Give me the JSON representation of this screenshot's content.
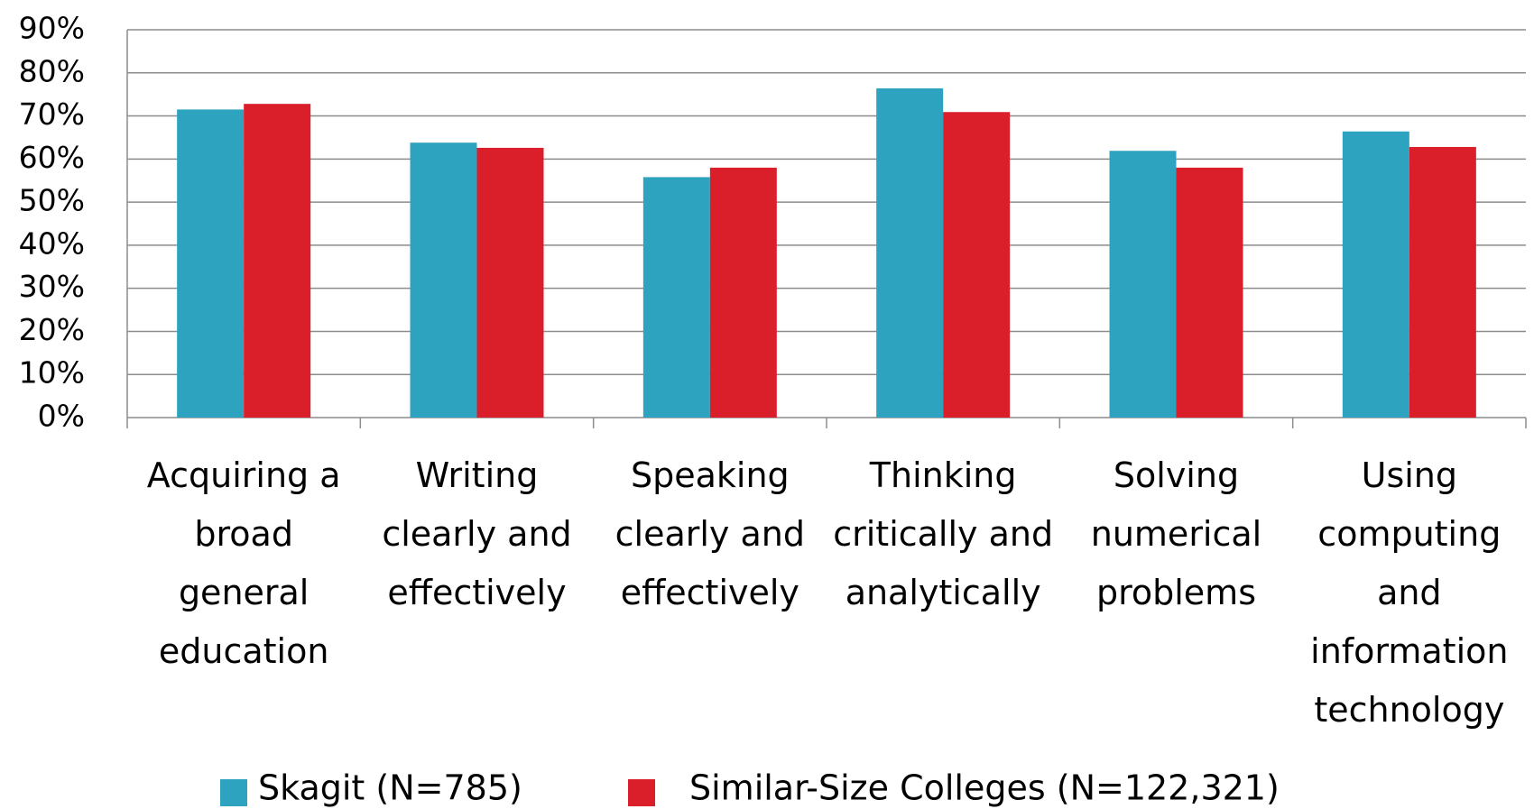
{
  "chart_data": {
    "type": "bar",
    "categories": [
      "Acquiring a broad general education",
      "Writing clearly and effectively",
      "Speaking clearly and effectively",
      "Thinking critically and analytically",
      "Solving numerical problems",
      "Using computing and information technology"
    ],
    "series": [
      {
        "name": "Skagit (N=785)",
        "color": "#2ea3c0",
        "values": [
          71.5,
          63.8,
          55.8,
          76.4,
          61.9,
          66.4
        ]
      },
      {
        "name": "Similar-Size Colleges (N=122,321)",
        "color": "#da1f2a",
        "values": [
          72.8,
          62.6,
          58.0,
          70.9,
          58.0,
          62.8
        ]
      }
    ],
    "ylim": [
      0,
      90
    ],
    "yticks": [
      {
        "value": 0,
        "label": "0%"
      },
      {
        "value": 10,
        "label": "10%"
      },
      {
        "value": 20,
        "label": "20%"
      },
      {
        "value": 30,
        "label": "30%"
      },
      {
        "value": 40,
        "label": "40%"
      },
      {
        "value": 50,
        "label": "50%"
      },
      {
        "value": 60,
        "label": "60%"
      },
      {
        "value": 70,
        "label": "70%"
      },
      {
        "value": 80,
        "label": "80%"
      },
      {
        "value": 90,
        "label": "90%"
      }
    ],
    "grid": true,
    "legend": "bottom"
  }
}
